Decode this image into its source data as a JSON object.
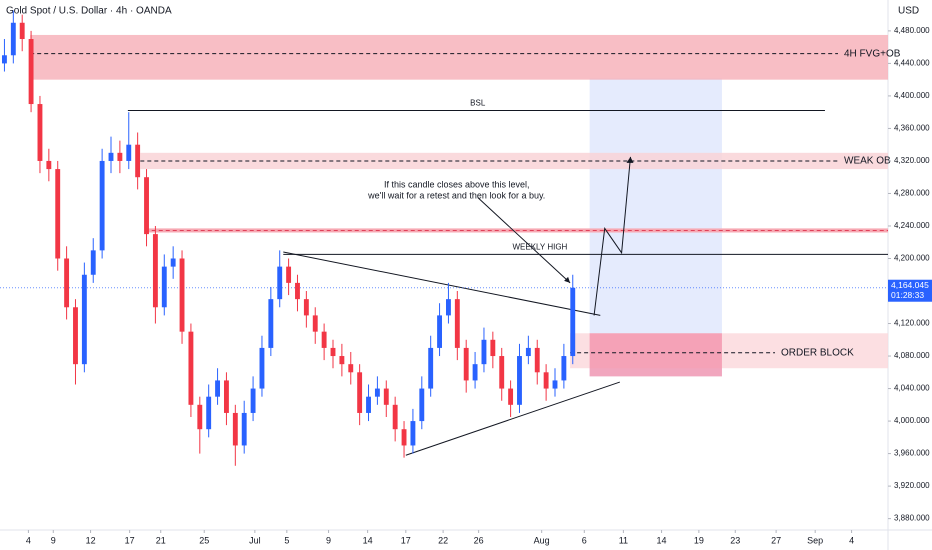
{
  "chart_data": {
    "type": "candlestick",
    "title": "Gold Spot / U.S. Dollar · 4h · OANDA",
    "currency": "USD",
    "up_color": "#2962ff",
    "down_color": "#f23645",
    "xlim": [
      0,
      100
    ],
    "ylim": [
      3866,
      4518
    ],
    "xticks": [
      {
        "value": 3.2,
        "label": "4"
      },
      {
        "value": 6,
        "label": "9"
      },
      {
        "value": 10.2,
        "label": "12"
      },
      {
        "value": 14.6,
        "label": "17"
      },
      {
        "value": 18.1,
        "label": "21"
      },
      {
        "value": 23,
        "label": "25"
      },
      {
        "value": 28.7,
        "label": "Jul"
      },
      {
        "value": 32.3,
        "label": "5"
      },
      {
        "value": 37,
        "label": "9"
      },
      {
        "value": 41.4,
        "label": "14"
      },
      {
        "value": 45.7,
        "label": "17"
      },
      {
        "value": 49.9,
        "label": "22"
      },
      {
        "value": 53.9,
        "label": "26"
      },
      {
        "value": 61,
        "label": "Aug"
      },
      {
        "value": 65.8,
        "label": "6"
      },
      {
        "value": 70.2,
        "label": "11"
      },
      {
        "value": 74.5,
        "label": "14"
      },
      {
        "value": 78.7,
        "label": "19"
      },
      {
        "value": 82.8,
        "label": "23"
      },
      {
        "value": 87.4,
        "label": "27"
      },
      {
        "value": 91.8,
        "label": "Sep"
      },
      {
        "value": 95.9,
        "label": "4"
      }
    ],
    "yticks": [
      {
        "value": 3880,
        "label": "3,880.000"
      },
      {
        "value": 3920,
        "label": "3,920.000"
      },
      {
        "value": 3960,
        "label": "3,960.000"
      },
      {
        "value": 4000,
        "label": "4,000.000"
      },
      {
        "value": 4040,
        "label": "4,040.000"
      },
      {
        "value": 4080,
        "label": "4,080.000"
      },
      {
        "value": 4120,
        "label": "4,120.000"
      },
      {
        "value": 4200,
        "label": "4,200.000"
      },
      {
        "value": 4240,
        "label": "4,240.000"
      },
      {
        "value": 4280,
        "label": "4,280.000"
      },
      {
        "value": 4320,
        "label": "4,320.000"
      },
      {
        "value": 4360,
        "label": "4,360.000"
      },
      {
        "value": 4400,
        "label": "4,400.000"
      },
      {
        "value": 4440,
        "label": "4,440.000"
      },
      {
        "value": 4480,
        "label": "4,480.000"
      }
    ],
    "candles": [
      [
        4440,
        4470,
        4430,
        4450
      ],
      [
        4450,
        4505,
        4440,
        4490
      ],
      [
        4490,
        4500,
        4455,
        4470
      ],
      [
        4470,
        4480,
        4380,
        4390
      ],
      [
        4390,
        4400,
        4305,
        4320
      ],
      [
        4320,
        4335,
        4295,
        4310
      ],
      [
        4310,
        4320,
        4185,
        4200
      ],
      [
        4200,
        4215,
        4125,
        4140
      ],
      [
        4140,
        4150,
        4045,
        4070
      ],
      [
        4070,
        4195,
        4060,
        4180
      ],
      [
        4180,
        4225,
        4170,
        4210
      ],
      [
        4210,
        4335,
        4200,
        4320
      ],
      [
        4320,
        4350,
        4305,
        4330
      ],
      [
        4330,
        4345,
        4305,
        4320
      ],
      [
        4320,
        4380,
        4310,
        4340
      ],
      [
        4340,
        4355,
        4285,
        4300
      ],
      [
        4300,
        4310,
        4215,
        4230
      ],
      [
        4230,
        4240,
        4120,
        4140
      ],
      [
        4140,
        4205,
        4130,
        4190
      ],
      [
        4190,
        4215,
        4175,
        4200
      ],
      [
        4200,
        4210,
        4095,
        4110
      ],
      [
        4110,
        4120,
        4005,
        4020
      ],
      [
        4020,
        4030,
        3960,
        3990
      ],
      [
        3990,
        4045,
        3980,
        4030
      ],
      [
        4030,
        4065,
        4020,
        4050
      ],
      [
        4050,
        4060,
        3995,
        4010
      ],
      [
        4010,
        4020,
        3945,
        3970
      ],
      [
        3970,
        4025,
        3960,
        4010
      ],
      [
        4010,
        4055,
        4000,
        4040
      ],
      [
        4040,
        4105,
        4030,
        4090
      ],
      [
        4090,
        4165,
        4080,
        4150
      ],
      [
        4150,
        4210,
        4140,
        4190
      ],
      [
        4190,
        4200,
        4155,
        4170
      ],
      [
        4170,
        4180,
        4135,
        4150
      ],
      [
        4150,
        4160,
        4115,
        4130
      ],
      [
        4130,
        4140,
        4095,
        4110
      ],
      [
        4110,
        4120,
        4075,
        4090
      ],
      [
        4090,
        4100,
        4065,
        4080
      ],
      [
        4080,
        4095,
        4055,
        4070
      ],
      [
        4070,
        4085,
        4045,
        4060
      ],
      [
        4060,
        4070,
        3995,
        4010
      ],
      [
        4010,
        4045,
        4000,
        4030
      ],
      [
        4030,
        4055,
        4020,
        4040
      ],
      [
        4040,
        4050,
        4005,
        4020
      ],
      [
        4020,
        4030,
        3975,
        3990
      ],
      [
        3990,
        4000,
        3955,
        3970
      ],
      [
        3970,
        4015,
        3960,
        4000
      ],
      [
        4000,
        4055,
        3990,
        4040
      ],
      [
        4040,
        4105,
        4030,
        4090
      ],
      [
        4090,
        4145,
        4080,
        4130
      ],
      [
        4130,
        4170,
        4120,
        4150
      ],
      [
        4150,
        4160,
        4075,
        4090
      ],
      [
        4090,
        4100,
        4035,
        4050
      ],
      [
        4050,
        4085,
        4040,
        4070
      ],
      [
        4070,
        4115,
        4060,
        4100
      ],
      [
        4100,
        4110,
        4065,
        4080
      ],
      [
        4080,
        4090,
        4025,
        4040
      ],
      [
        4040,
        4050,
        4005,
        4020
      ],
      [
        4020,
        4095,
        4010,
        4080
      ],
      [
        4080,
        4105,
        4070,
        4090
      ],
      [
        4090,
        4100,
        4045,
        4060
      ],
      [
        4060,
        4070,
        4025,
        4040
      ],
      [
        4040,
        4065,
        4030,
        4050
      ],
      [
        4050,
        4095,
        4040,
        4080
      ],
      [
        4080,
        4180,
        4070,
        4164
      ]
    ],
    "last_price": {
      "value": 4164.045,
      "label": "4,164.045",
      "countdown": "01:28:33"
    },
    "zones": [
      {
        "label": "4H FVG+OB",
        "top": 4475,
        "bottom": 4420,
        "line": 4452,
        "x_start": 3.4,
        "color": "#f7b3bb"
      },
      {
        "label": "WEAK OB",
        "top": 4330,
        "bottom": 4310,
        "line": 4320,
        "x_start": 15.8,
        "color": "#f9d3d7"
      },
      {
        "label": "ORDER BLOCK",
        "top": 4108,
        "bottom": 4065,
        "line": 4084,
        "x_start": 64.2,
        "color": "#fbd9dd"
      }
    ],
    "red_band": {
      "top": 4237,
      "bottom": 4232,
      "x_start": 16.3
    },
    "order_block_core": {
      "top": 4108,
      "bottom": 4055,
      "x_start": 66.4,
      "x_end": 81.3
    },
    "target_box": {
      "top": 4422,
      "bottom": 4055,
      "x_start": 66.4,
      "x_end": 81.3
    },
    "levels": [
      {
        "label": "BSL",
        "price": 4382,
        "x_start": 14.4,
        "x_end": 92.9,
        "label_x": 53.8
      },
      {
        "label": "WEEKLY HIGH",
        "price": 4205,
        "x_start": 31.9,
        "x_end": 100,
        "label_x": 60.8
      }
    ],
    "trendlines": [
      {
        "x": [
          31.9,
          67.6
        ],
        "y": [
          4208,
          4130
        ]
      },
      {
        "x": [
          45.7,
          69.8
        ],
        "y": [
          3958,
          4048
        ]
      }
    ],
    "projection": {
      "x": [
        66.9,
        68.1,
        70.0,
        71.0
      ],
      "y": [
        4130,
        4237,
        4207,
        4325
      ]
    },
    "note": {
      "lines": [
        "If this candle closes above this level,",
        "we'll wait for a retest and then look for a buy."
      ],
      "x": 41.3,
      "y": 4290,
      "arrow_x": [
        53.8,
        64.2
      ],
      "arrow_y": [
        4275,
        4170
      ]
    }
  }
}
